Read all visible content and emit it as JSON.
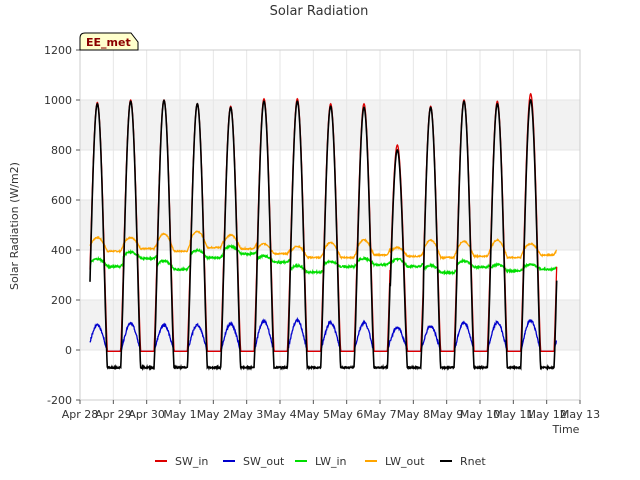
{
  "chart_data": {
    "type": "line",
    "title": "Solar Radiation",
    "xlabel": "Time",
    "ylabel": "Solar Radiation (W/m2)",
    "station_label": "EE_met",
    "ylim": [
      -200,
      1200
    ],
    "yticks": [
      -200,
      0,
      200,
      400,
      600,
      800,
      1000,
      1200
    ],
    "xlim": [
      0,
      15
    ],
    "xticks": [
      0,
      1,
      2,
      3,
      4,
      5,
      6,
      7,
      8,
      9,
      10,
      11,
      12,
      13,
      14,
      15
    ],
    "xtick_labels": [
      "Apr 28",
      "Apr 29",
      "Apr 30",
      "May 1",
      "May 2",
      "May 3",
      "May 4",
      "May 5",
      "May 6",
      "May 7",
      "May 8",
      "May 9",
      "May 10",
      "May 11",
      "May 12",
      "May 13"
    ],
    "x_units": "days since Apr 28",
    "series_start_day": 0.3,
    "series_end_day": 14.3,
    "grid": true,
    "legend_position": "bottom",
    "series": [
      {
        "name": "SW_in",
        "color": "#dd0000",
        "daily_peak": [
          990,
          1000,
          1000,
          985,
          975,
          1005,
          1005,
          985,
          985,
          820,
          975,
          1000,
          995,
          1025
        ],
        "night_value": -5
      },
      {
        "name": "SW_out",
        "color": "#0000cc",
        "daily_peak": [
          100,
          105,
          100,
          100,
          105,
          115,
          118,
          110,
          110,
          90,
          95,
          110,
          110,
          118
        ],
        "night_value": -5
      },
      {
        "name": "LW_in",
        "color": "#00dd00",
        "daily_mean": [
          345,
          375,
          335,
          380,
          395,
          360,
          320,
          340,
          350,
          345,
          320,
          340,
          325,
          330
        ],
        "daily_amp": [
          30,
          25,
          35,
          30,
          30,
          25,
          25,
          20,
          25,
          30,
          30,
          25,
          25,
          20
        ]
      },
      {
        "name": "LW_out",
        "color": "#ffa500",
        "daily_min": [
          395,
          405,
          395,
          410,
          405,
          385,
          370,
          370,
          380,
          375,
          370,
          375,
          370,
          380
        ],
        "daily_max": [
          450,
          450,
          465,
          475,
          460,
          425,
          415,
          430,
          440,
          410,
          440,
          435,
          440,
          425
        ]
      },
      {
        "name": "Rnet",
        "color": "#000000",
        "daily_peak": [
          985,
          995,
          998,
          985,
          970,
          995,
          995,
          975,
          970,
          800,
          970,
          995,
          985,
          1000
        ],
        "night_value": -70
      }
    ]
  }
}
